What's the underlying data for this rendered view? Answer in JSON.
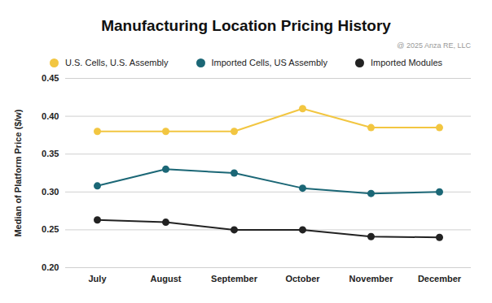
{
  "chart_data": {
    "type": "line",
    "title": "Manufacturing Location Pricing History",
    "annotations": [
      "@ 2025 Anza RE, LLC"
    ],
    "y_label": "Median of Platform Price ($/w)",
    "categories": [
      "July",
      "August",
      "September",
      "October",
      "November",
      "December"
    ],
    "series": [
      {
        "name": "U.S. Cells, U.S. Assembly",
        "color": "#F2C641",
        "values": [
          0.38,
          0.38,
          0.38,
          0.41,
          0.385,
          0.385
        ]
      },
      {
        "name": "Imported Cells, US Assembly",
        "color": "#1B6776",
        "values": [
          0.308,
          0.33,
          0.325,
          0.305,
          0.298,
          0.3
        ]
      },
      {
        "name": "Imported Modules",
        "color": "#222222",
        "values": [
          0.263,
          0.26,
          0.25,
          0.25,
          0.241,
          0.24
        ]
      }
    ],
    "ylim": [
      0.2,
      0.45
    ],
    "yticks": [
      {
        "value": 0.2,
        "label": "0.20"
      },
      0.25,
      {
        "value": 0.3,
        "label": "0.30"
      },
      0.35,
      {
        "value": 0.4,
        "label": "0.40"
      },
      0.45
    ],
    "grid": true,
    "legend": "top",
    "marker": "circle"
  }
}
